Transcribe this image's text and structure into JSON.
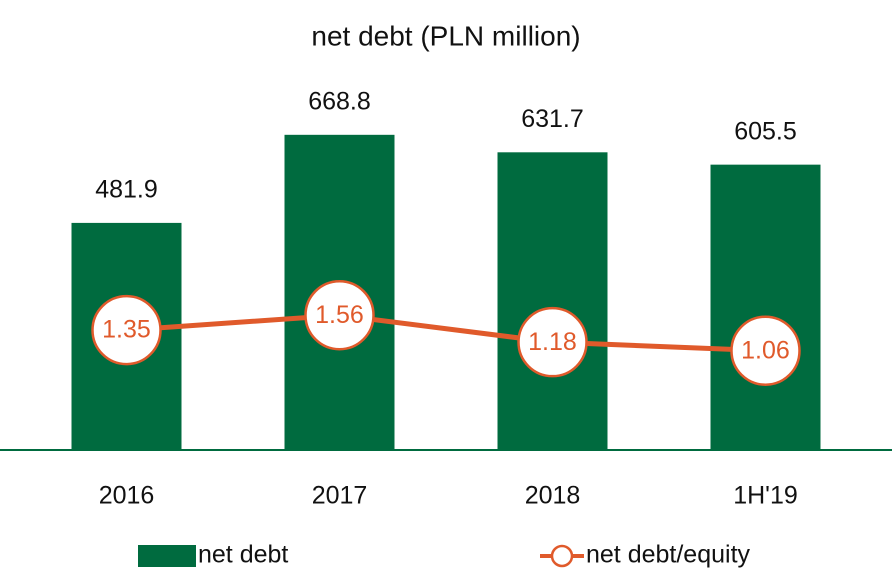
{
  "chart_data": {
    "type": "bar_line",
    "title": "net debt (PLN million)",
    "categories": [
      "2016",
      "2017",
      "2018",
      "1H'19"
    ],
    "series": [
      {
        "name": "net debt",
        "type": "bar",
        "color": "#006b3f",
        "values": [
          481.9,
          668.8,
          631.7,
          605.5
        ]
      },
      {
        "name": "net debt/equity",
        "type": "line",
        "axis": "y2",
        "color": "#e05a2b",
        "values": [
          1.35,
          1.56,
          1.18,
          1.06
        ]
      }
    ],
    "ylim": [
      0,
      870
    ],
    "y2lim": [
      -0.34,
      5.44
    ],
    "legend": "bottom"
  }
}
